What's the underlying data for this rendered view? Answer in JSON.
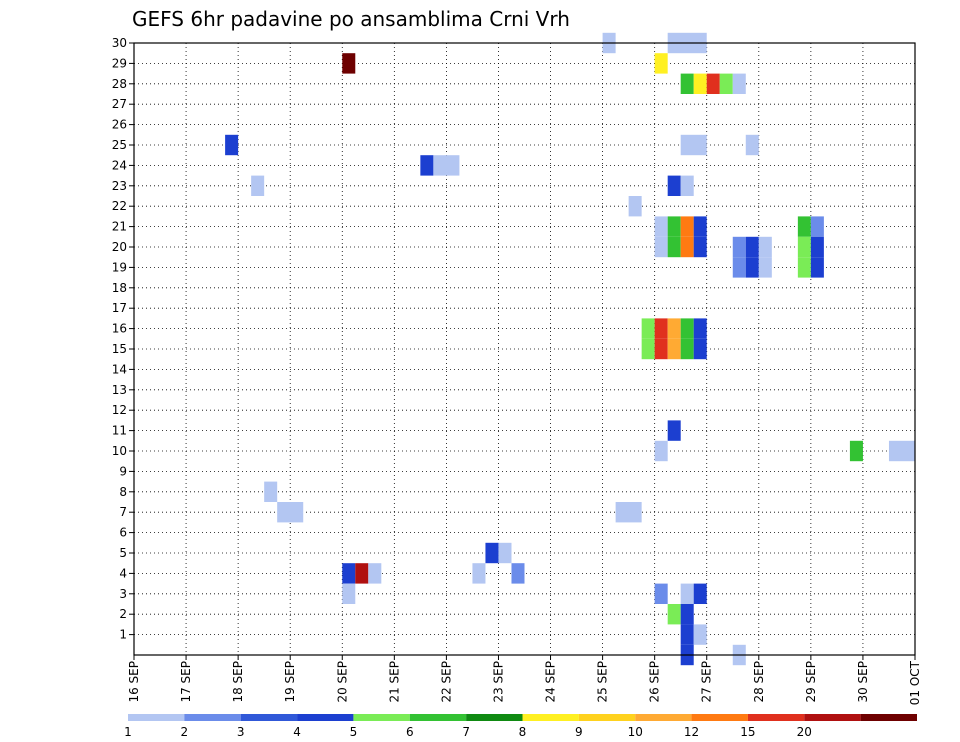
{
  "chart_data": {
    "type": "heatmap",
    "title": "GEFS 6hr padavine po ansamblima Crni Vrh",
    "x_ticks": [
      "16 SEP",
      "17 SEP",
      "18 SEP",
      "19 SEP",
      "20 SEP",
      "21 SEP",
      "22 SEP",
      "23 SEP",
      "24 SEP",
      "25 SEP",
      "26 SEP",
      "27 SEP",
      "28 SEP",
      "29 SEP",
      "30 SEP",
      "01 OCT"
    ],
    "y_ticks": [
      "1",
      "2",
      "3",
      "4",
      "5",
      "6",
      "7",
      "8",
      "9",
      "10",
      "11",
      "12",
      "13",
      "14",
      "15",
      "16",
      "17",
      "18",
      "19",
      "20",
      "21",
      "22",
      "23",
      "24",
      "25",
      "26",
      "27",
      "28",
      "29",
      "30"
    ],
    "y_range": [
      0,
      30
    ],
    "x_range_days": [
      0,
      15
    ],
    "grid": true,
    "time_step_hours": 6,
    "colorbar": {
      "labels": [
        "1",
        "2",
        "3",
        "4",
        "5",
        "6",
        "7",
        "8",
        "9",
        "10",
        "12",
        "15",
        "20"
      ],
      "colors": [
        "#b3c6f2",
        "#6b8cea",
        "#3058d8",
        "#1c3fd0",
        "#7aec56",
        "#33c233",
        "#0f8a12",
        "#fff022",
        "#ffd21e",
        "#ffaa33",
        "#ff7a12",
        "#e0301e",
        "#b01010",
        "#6e0000"
      ]
    },
    "cells": [
      {
        "member": 30,
        "slot": 36,
        "color": "#b3c6f2"
      },
      {
        "member": 30,
        "slot": 41,
        "span": 3,
        "color": "#b3c6f2"
      },
      {
        "member": 29,
        "slot": 16,
        "color": "#6e0000"
      },
      {
        "member": 29,
        "slot": 40,
        "color": "#fff022"
      },
      {
        "member": 28,
        "slot": 42,
        "color": "#33c233"
      },
      {
        "member": 28,
        "slot": 43,
        "color": "#fff022"
      },
      {
        "member": 28,
        "slot": 44,
        "color": "#e0301e"
      },
      {
        "member": 28,
        "slot": 45,
        "color": "#7aec56"
      },
      {
        "member": 28,
        "slot": 46,
        "color": "#b3c6f2"
      },
      {
        "member": 25,
        "slot": 7,
        "color": "#1c3fd0"
      },
      {
        "member": 25,
        "slot": 42,
        "span": 2,
        "color": "#b3c6f2"
      },
      {
        "member": 25,
        "slot": 47,
        "color": "#b3c6f2"
      },
      {
        "member": 24,
        "slot": 22,
        "color": "#1c3fd0"
      },
      {
        "member": 24,
        "slot": 23,
        "span": 2,
        "color": "#b3c6f2"
      },
      {
        "member": 23,
        "slot": 9,
        "color": "#b3c6f2"
      },
      {
        "member": 23,
        "slot": 41,
        "color": "#1c3fd0"
      },
      {
        "member": 23,
        "slot": 42,
        "color": "#b3c6f2"
      },
      {
        "member": 22,
        "slot": 38,
        "color": "#b3c6f2"
      },
      {
        "member": 21,
        "slot": 40,
        "color": "#b3c6f2"
      },
      {
        "member": 21,
        "slot": 41,
        "color": "#33c233"
      },
      {
        "member": 21,
        "slot": 42,
        "color": "#ff7a12"
      },
      {
        "member": 21,
        "slot": 43,
        "color": "#1c3fd0"
      },
      {
        "member": 21,
        "slot": 51,
        "color": "#33c233"
      },
      {
        "member": 21,
        "slot": 52,
        "color": "#6b8cea"
      },
      {
        "member": 20,
        "slot": 40,
        "color": "#b3c6f2"
      },
      {
        "member": 20,
        "slot": 41,
        "color": "#33c233"
      },
      {
        "member": 20,
        "slot": 42,
        "color": "#ff7a12"
      },
      {
        "member": 20,
        "slot": 43,
        "color": "#1c3fd0"
      },
      {
        "member": 20,
        "slot": 46,
        "color": "#6b8cea"
      },
      {
        "member": 20,
        "slot": 47,
        "color": "#1c3fd0"
      },
      {
        "member": 20,
        "slot": 48,
        "color": "#b3c6f2"
      },
      {
        "member": 20,
        "slot": 51,
        "color": "#7aec56"
      },
      {
        "member": 20,
        "slot": 52,
        "color": "#1c3fd0"
      },
      {
        "member": 19,
        "slot": 46,
        "color": "#6b8cea"
      },
      {
        "member": 19,
        "slot": 47,
        "color": "#1c3fd0"
      },
      {
        "member": 19,
        "slot": 48,
        "color": "#b3c6f2"
      },
      {
        "member": 19,
        "slot": 51,
        "color": "#7aec56"
      },
      {
        "member": 19,
        "slot": 52,
        "color": "#1c3fd0"
      },
      {
        "member": 16,
        "slot": 39,
        "color": "#7aec56"
      },
      {
        "member": 16,
        "slot": 40,
        "color": "#e0301e"
      },
      {
        "member": 16,
        "slot": 41,
        "color": "#ffaa33"
      },
      {
        "member": 16,
        "slot": 42,
        "color": "#33c233"
      },
      {
        "member": 16,
        "slot": 43,
        "color": "#1c3fd0"
      },
      {
        "member": 15,
        "slot": 39,
        "color": "#7aec56"
      },
      {
        "member": 15,
        "slot": 40,
        "color": "#e0301e"
      },
      {
        "member": 15,
        "slot": 41,
        "color": "#ffaa33"
      },
      {
        "member": 15,
        "slot": 42,
        "color": "#33c233"
      },
      {
        "member": 15,
        "slot": 43,
        "color": "#1c3fd0"
      },
      {
        "member": 11,
        "slot": 41,
        "color": "#1c3fd0"
      },
      {
        "member": 10,
        "slot": 40,
        "color": "#b3c6f2"
      },
      {
        "member": 10,
        "slot": 55,
        "color": "#33c233"
      },
      {
        "member": 10,
        "slot": 58,
        "span": 2,
        "color": "#b3c6f2"
      },
      {
        "member": 8,
        "slot": 10,
        "color": "#b3c6f2"
      },
      {
        "member": 7,
        "slot": 11,
        "span": 2,
        "color": "#b3c6f2"
      },
      {
        "member": 7,
        "slot": 37,
        "span": 2,
        "color": "#b3c6f2"
      },
      {
        "member": 5,
        "slot": 27,
        "color": "#1c3fd0"
      },
      {
        "member": 5,
        "slot": 28,
        "color": "#b3c6f2"
      },
      {
        "member": 4,
        "slot": 16,
        "color": "#1c3fd0"
      },
      {
        "member": 4,
        "slot": 17,
        "color": "#b01010"
      },
      {
        "member": 4,
        "slot": 18,
        "color": "#b3c6f2"
      },
      {
        "member": 4,
        "slot": 26,
        "color": "#b3c6f2"
      },
      {
        "member": 4,
        "slot": 29,
        "color": "#6b8cea"
      },
      {
        "member": 3,
        "slot": 16,
        "color": "#b3c6f2"
      },
      {
        "member": 3,
        "slot": 40,
        "color": "#6b8cea"
      },
      {
        "member": 3,
        "slot": 42,
        "color": "#b3c6f2"
      },
      {
        "member": 3,
        "slot": 43,
        "color": "#1c3fd0"
      },
      {
        "member": 2,
        "slot": 41,
        "color": "#7aec56"
      },
      {
        "member": 2,
        "slot": 42,
        "color": "#1c3fd0"
      },
      {
        "member": 1,
        "slot": 42,
        "color": "#1c3fd0"
      },
      {
        "member": 1,
        "slot": 43,
        "color": "#b3c6f2"
      },
      {
        "member": 0,
        "slot": 42,
        "color": "#1c3fd0"
      },
      {
        "member": 0,
        "slot": 46,
        "color": "#b3c6f2"
      }
    ]
  }
}
